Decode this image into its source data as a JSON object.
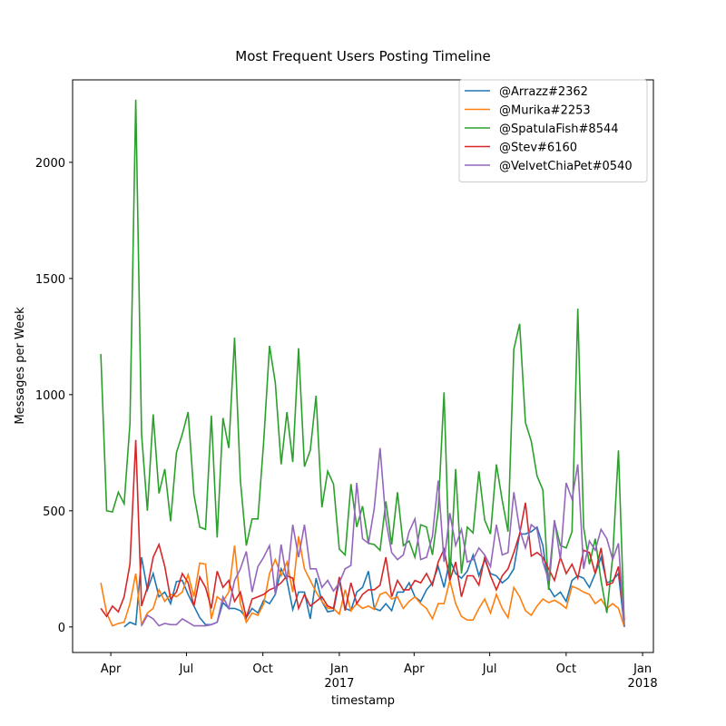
{
  "chart_data": {
    "type": "line",
    "title": "Most Frequent Users Posting Timeline",
    "xlabel": "timestamp",
    "ylabel": "Messages per Week",
    "x": [
      "2016-03-20",
      "2016-03-27",
      "2016-04-03",
      "2016-04-10",
      "2016-04-17",
      "2016-04-24",
      "2016-05-01",
      "2016-05-08",
      "2016-05-15",
      "2016-05-22",
      "2016-05-29",
      "2016-06-05",
      "2016-06-12",
      "2016-06-19",
      "2016-06-26",
      "2016-07-03",
      "2016-07-10",
      "2016-07-17",
      "2016-07-24",
      "2016-07-31",
      "2016-08-07",
      "2016-08-14",
      "2016-08-21",
      "2016-08-28",
      "2016-09-04",
      "2016-09-11",
      "2016-09-18",
      "2016-09-25",
      "2016-10-02",
      "2016-10-09",
      "2016-10-16",
      "2016-10-23",
      "2016-10-30",
      "2016-11-06",
      "2016-11-13",
      "2016-11-20",
      "2016-11-27",
      "2016-12-04",
      "2016-12-11",
      "2016-12-18",
      "2016-12-25",
      "2017-01-01",
      "2017-01-08",
      "2017-01-15",
      "2017-01-22",
      "2017-01-29",
      "2017-02-05",
      "2017-02-12",
      "2017-02-19",
      "2017-02-26",
      "2017-03-05",
      "2017-03-12",
      "2017-03-19",
      "2017-03-26",
      "2017-04-02",
      "2017-04-09",
      "2017-04-16",
      "2017-04-23",
      "2017-04-30",
      "2017-05-07",
      "2017-05-14",
      "2017-05-21",
      "2017-05-28",
      "2017-06-04",
      "2017-06-11",
      "2017-06-18",
      "2017-06-25",
      "2017-07-02",
      "2017-07-09",
      "2017-07-16",
      "2017-07-23",
      "2017-07-30",
      "2017-08-06",
      "2017-08-13",
      "2017-08-20",
      "2017-08-27",
      "2017-09-03",
      "2017-09-10",
      "2017-09-17",
      "2017-09-24",
      "2017-10-01",
      "2017-10-08",
      "2017-10-15",
      "2017-10-22",
      "2017-10-29",
      "2017-11-05",
      "2017-11-12",
      "2017-11-19",
      "2017-11-26",
      "2017-12-03",
      "2017-12-10"
    ],
    "series": [
      {
        "name": "@Arrazz#2362",
        "color": "#1f77b4",
        "values": [
          null,
          null,
          null,
          null,
          0,
          20,
          10,
          300,
          160,
          230,
          130,
          150,
          100,
          195,
          200,
          140,
          90,
          40,
          10,
          10,
          20,
          105,
          80,
          80,
          70,
          40,
          80,
          60,
          115,
          100,
          140,
          250,
          200,
          75,
          150,
          150,
          35,
          210,
          110,
          65,
          70,
          200,
          80,
          70,
          150,
          170,
          240,
          80,
          70,
          100,
          70,
          150,
          150,
          190,
          130,
          110,
          160,
          190,
          260,
          170,
          290,
          230,
          210,
          240,
          310,
          220,
          290,
          230,
          220,
          190,
          210,
          250,
          400,
          400,
          410,
          430,
          350,
          170,
          130,
          150,
          110,
          200,
          220,
          210,
          170,
          230,
          300,
          190,
          200,
          230,
          0
        ]
      },
      {
        "name": "@Murika#2253",
        "color": "#ff7f0e",
        "values": [
          190,
          60,
          5,
          15,
          20,
          100,
          230,
          10,
          60,
          80,
          160,
          110,
          140,
          130,
          150,
          225,
          130,
          275,
          270,
          35,
          130,
          110,
          150,
          350,
          100,
          20,
          60,
          50,
          100,
          230,
          290,
          220,
          280,
          150,
          390,
          250,
          200,
          150,
          110,
          80,
          80,
          55,
          160,
          70,
          100,
          80,
          90,
          75,
          140,
          150,
          120,
          130,
          80,
          110,
          130,
          100,
          80,
          35,
          100,
          100,
          200,
          100,
          45,
          30,
          30,
          80,
          120,
          60,
          140,
          80,
          40,
          170,
          130,
          70,
          50,
          90,
          120,
          105,
          115,
          100,
          80,
          175,
          165,
          150,
          140,
          100,
          120,
          80,
          100,
          80,
          0
        ]
      },
      {
        "name": "@SpatulaFish#8544",
        "color": "#2ca02c",
        "values": [
          1175,
          500,
          495,
          580,
          530,
          875,
          2270,
          830,
          500,
          915,
          575,
          680,
          455,
          750,
          830,
          925,
          570,
          430,
          420,
          910,
          385,
          900,
          770,
          1245,
          630,
          350,
          465,
          465,
          800,
          1210,
          1050,
          700,
          925,
          710,
          1200,
          690,
          760,
          995,
          515,
          670,
          615,
          335,
          310,
          615,
          430,
          520,
          360,
          355,
          330,
          540,
          355,
          580,
          350,
          370,
          300,
          440,
          430,
          310,
          500,
          1010,
          200,
          680,
          230,
          430,
          405,
          670,
          460,
          400,
          700,
          545,
          410,
          1195,
          1305,
          880,
          800,
          650,
          590,
          160,
          455,
          350,
          340,
          410,
          1370,
          430,
          270,
          380,
          200,
          60,
          300,
          760,
          0
        ]
      },
      {
        "name": "@Stev#6160",
        "color": "#d62728",
        "values": [
          80,
          45,
          90,
          65,
          130,
          270,
          805,
          90,
          170,
          300,
          355,
          260,
          120,
          150,
          230,
          190,
          90,
          215,
          170,
          80,
          240,
          170,
          200,
          110,
          150,
          40,
          120,
          130,
          140,
          160,
          170,
          190,
          220,
          210,
          80,
          140,
          90,
          110,
          130,
          90,
          80,
          215,
          70,
          190,
          100,
          140,
          160,
          160,
          180,
          300,
          130,
          200,
          160,
          160,
          200,
          190,
          230,
          180,
          280,
          335,
          200,
          280,
          130,
          220,
          220,
          180,
          300,
          220,
          160,
          220,
          250,
          320,
          400,
          535,
          305,
          320,
          300,
          250,
          200,
          300,
          230,
          270,
          210,
          330,
          320,
          230,
          340,
          180,
          190,
          260,
          30
        ]
      },
      {
        "name": "@VelvetChiaPet#0540",
        "color": "#9467bd",
        "values": [
          null,
          null,
          null,
          null,
          null,
          null,
          null,
          5,
          50,
          35,
          5,
          15,
          10,
          10,
          35,
          20,
          5,
          5,
          5,
          10,
          20,
          130,
          80,
          200,
          250,
          325,
          150,
          260,
          300,
          350,
          140,
          355,
          200,
          440,
          300,
          440,
          250,
          250,
          170,
          200,
          155,
          190,
          250,
          265,
          620,
          380,
          360,
          510,
          770,
          460,
          320,
          290,
          310,
          410,
          465,
          290,
          300,
          390,
          630,
          280,
          490,
          350,
          420,
          280,
          290,
          340,
          310,
          260,
          440,
          310,
          320,
          580,
          420,
          340,
          440,
          420,
          280,
          200,
          460,
          290,
          620,
          550,
          700,
          250,
          370,
          330,
          420,
          380,
          290,
          360,
          0
        ]
      }
    ],
    "xlim": [
      "2016-02-15",
      "2018-01-14"
    ],
    "xticks": [
      {
        "value": "2016-04-01",
        "label": "Apr"
      },
      {
        "value": "2016-07-01",
        "label": "Jul"
      },
      {
        "value": "2016-10-01",
        "label": "Oct"
      },
      {
        "value": "2017-01-01",
        "label": "Jan\n2017"
      },
      {
        "value": "2017-04-01",
        "label": "Apr"
      },
      {
        "value": "2017-07-01",
        "label": "Jul"
      },
      {
        "value": "2017-10-01",
        "label": "Oct"
      },
      {
        "value": "2018-01-01",
        "label": "Jan\n2018"
      }
    ],
    "ylim": [
      -110,
      2355
    ],
    "yticks": [
      0,
      500,
      1000,
      1500,
      2000
    ],
    "legend": "upper right"
  }
}
